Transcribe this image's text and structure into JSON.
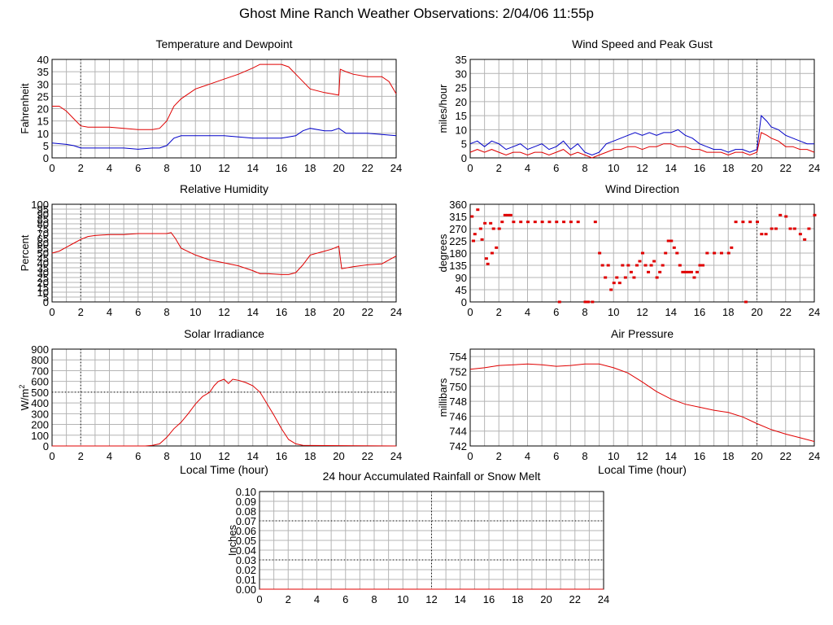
{
  "page": {
    "title": "Ghost Mine Ranch Weather Observations: 2/04/06 11:55p"
  },
  "colors": {
    "red": "#e00000",
    "blue": "#0000c8",
    "grid": "#b4b4b4",
    "refline": "#000000"
  },
  "chart_data": [
    {
      "id": "temp",
      "type": "line",
      "title": "Temperature and Dewpoint",
      "ylabel": "Fahrenheit",
      "xlabel": "",
      "xlim": [
        0,
        24
      ],
      "ylim": [
        0,
        40
      ],
      "xticks": [
        0,
        2,
        4,
        6,
        8,
        10,
        12,
        14,
        16,
        18,
        20,
        22,
        24
      ],
      "yticks": [
        "0",
        "5",
        "10",
        "15",
        "20",
        "25",
        "30",
        "35",
        "40"
      ],
      "ref_x": [
        2
      ],
      "series": [
        {
          "color": "red",
          "x": [
            0,
            0.5,
            1,
            1.5,
            2,
            2.5,
            3,
            4,
            5,
            6,
            7,
            7.5,
            8,
            8.5,
            9,
            10,
            11,
            12,
            13,
            14,
            14.5,
            15,
            16,
            16.5,
            17,
            17.5,
            18,
            19,
            19.5,
            20,
            20.1,
            20.5,
            21,
            22,
            23,
            23.5,
            24
          ],
          "y": [
            21,
            21,
            19,
            16,
            13,
            12.5,
            12.5,
            12.5,
            12,
            11.5,
            11.5,
            12,
            15,
            21,
            24,
            28,
            30,
            32,
            34,
            36.5,
            38,
            38,
            38,
            37,
            34,
            31,
            28,
            26.5,
            26,
            25.5,
            36,
            35,
            34,
            33,
            33,
            31,
            26
          ]
        },
        {
          "color": "blue",
          "x": [
            0,
            1,
            1.5,
            2,
            3,
            4,
            5,
            6,
            7,
            7.5,
            8,
            8.5,
            9,
            10,
            11,
            12,
            13,
            14,
            15,
            16,
            17,
            17.5,
            18,
            19,
            19.5,
            20,
            20.5,
            21,
            22,
            23,
            24
          ],
          "y": [
            6,
            5.5,
            5,
            4,
            4,
            4,
            4,
            3.5,
            4,
            4,
            5,
            8,
            9,
            9,
            9,
            9,
            8.5,
            8,
            8,
            8,
            9,
            11,
            12,
            11,
            11,
            12,
            10,
            10,
            10,
            9.5,
            9
          ]
        }
      ]
    },
    {
      "id": "wind",
      "type": "line",
      "title": "Wind Speed and Peak Gust",
      "ylabel": "miles/hour",
      "xlabel": "",
      "xlim": [
        0,
        24
      ],
      "ylim": [
        0,
        35
      ],
      "xticks": [
        0,
        2,
        4,
        6,
        8,
        10,
        12,
        14,
        16,
        18,
        20,
        22,
        24
      ],
      "yticks": [
        "0",
        "5",
        "10",
        "15",
        "20",
        "25",
        "30",
        "35"
      ],
      "ref_x": [
        20
      ],
      "series": [
        {
          "color": "blue",
          "x": [
            0,
            0.5,
            1,
            1.5,
            2,
            2.5,
            3,
            3.5,
            4,
            4.5,
            5,
            5.5,
            6,
            6.5,
            7,
            7.5,
            8,
            8.5,
            9,
            9.5,
            10,
            10.5,
            11,
            11.5,
            12,
            12.5,
            13,
            13.5,
            14,
            14.5,
            15,
            15.5,
            16,
            16.5,
            17,
            17.5,
            18,
            18.5,
            19,
            19.5,
            20,
            20.3,
            20.7,
            21,
            21.5,
            22,
            22.5,
            23,
            23.5,
            24
          ],
          "y": [
            5,
            6,
            4,
            6,
            5,
            3,
            4,
            5,
            3,
            4,
            5,
            3,
            4,
            6,
            3,
            5,
            2,
            1,
            2,
            5,
            6,
            7,
            8,
            9,
            8,
            9,
            8,
            9,
            9,
            10,
            8,
            7,
            5,
            4,
            3,
            3,
            2,
            3,
            3,
            2,
            3,
            15,
            13,
            11,
            10,
            8,
            7,
            6,
            5,
            5
          ]
        },
        {
          "color": "red",
          "x": [
            0,
            0.5,
            1,
            1.5,
            2,
            2.5,
            3,
            3.5,
            4,
            4.5,
            5,
            5.5,
            6,
            6.5,
            7,
            7.5,
            8,
            8.5,
            9,
            9.5,
            10,
            10.5,
            11,
            11.5,
            12,
            12.5,
            13,
            13.5,
            14,
            14.5,
            15,
            15.5,
            16,
            16.5,
            17,
            17.5,
            18,
            18.5,
            19,
            19.5,
            20,
            20.3,
            20.7,
            21,
            21.5,
            22,
            22.5,
            23,
            23.5,
            24
          ],
          "y": [
            2,
            3,
            2,
            3,
            2,
            1,
            2,
            2,
            1,
            2,
            2,
            1,
            2,
            3,
            1,
            2,
            1,
            0,
            1,
            2,
            3,
            3,
            4,
            4,
            3,
            4,
            4,
            5,
            5,
            4,
            4,
            3,
            3,
            2,
            2,
            2,
            1,
            2,
            2,
            1,
            2,
            9,
            8,
            7,
            6,
            4,
            4,
            3,
            3,
            2
          ]
        }
      ]
    },
    {
      "id": "rh",
      "type": "line",
      "title": "Relative Humidity",
      "ylabel": "Percent",
      "xlabel": "",
      "xlim": [
        0,
        24
      ],
      "ylim": [
        0,
        100
      ],
      "xticks": [
        0,
        2,
        4,
        6,
        8,
        10,
        12,
        14,
        16,
        18,
        20,
        22,
        24
      ],
      "yticks": [
        "0",
        "5",
        "10",
        "15",
        "20",
        "25",
        "30",
        "35",
        "40",
        "45",
        "50",
        "55",
        "60",
        "65",
        "70",
        "75",
        "80",
        "85",
        "90",
        "95",
        "100"
      ],
      "ref_x": [
        2
      ],
      "series": [
        {
          "color": "red",
          "x": [
            0,
            0.5,
            1,
            1.5,
            2,
            2.5,
            3,
            4,
            5,
            6,
            7,
            8,
            8.3,
            8.6,
            9,
            10,
            11,
            12,
            13,
            14,
            14.5,
            15,
            16,
            16.5,
            17,
            17.5,
            18,
            19,
            19.5,
            20,
            20.2,
            21,
            22,
            23,
            24
          ],
          "y": [
            50,
            52,
            56,
            60,
            64,
            67,
            68,
            69,
            69,
            70,
            70,
            70,
            71,
            65,
            55,
            48,
            43,
            40,
            37,
            32,
            29,
            29,
            28,
            28,
            30,
            38,
            48,
            52,
            54,
            57,
            34,
            36,
            38,
            39,
            47
          ]
        }
      ]
    },
    {
      "id": "wdir",
      "type": "scatter",
      "title": "Wind Direction",
      "ylabel": "degrees",
      "xlabel": "",
      "xlim": [
        0,
        24
      ],
      "ylim": [
        0,
        360
      ],
      "xticks": [
        0,
        2,
        4,
        6,
        8,
        10,
        12,
        14,
        16,
        18,
        20,
        22,
        24
      ],
      "yticks": [
        "0",
        "45",
        "90",
        "135",
        "180",
        "225",
        "270",
        "315",
        "360"
      ],
      "ref_x": [
        20
      ],
      "series": [
        {
          "color": "red",
          "x": [
            0.1,
            0.2,
            0.3,
            0.5,
            0.7,
            0.8,
            1.0,
            1.1,
            1.2,
            1.4,
            1.5,
            1.6,
            1.8,
            2.0,
            2.2,
            2.4,
            2.6,
            2.8,
            3.0,
            3.5,
            4.0,
            4.5,
            5.0,
            5.5,
            6.0,
            6.2,
            6.5,
            7.0,
            7.5,
            8.0,
            8.2,
            8.5,
            8.7,
            9.0,
            9.2,
            9.4,
            9.6,
            9.8,
            10.0,
            10.2,
            10.4,
            10.6,
            10.8,
            11.0,
            11.2,
            11.4,
            11.6,
            11.8,
            12.0,
            12.2,
            12.4,
            12.6,
            12.8,
            13.0,
            13.2,
            13.4,
            13.6,
            13.8,
            14.0,
            14.2,
            14.4,
            14.6,
            14.8,
            15.0,
            15.2,
            15.4,
            15.6,
            15.8,
            16.0,
            16.2,
            16.5,
            17.0,
            17.5,
            18.0,
            18.2,
            18.5,
            19.0,
            19.2,
            19.5,
            20.0,
            20.3,
            20.6,
            21.0,
            21.3,
            21.6,
            22.0,
            22.3,
            22.6,
            23.0,
            23.3,
            23.6,
            24.0
          ],
          "y": [
            315,
            225,
            250,
            340,
            270,
            230,
            290,
            160,
            140,
            290,
            180,
            270,
            200,
            270,
            295,
            320,
            320,
            320,
            295,
            295,
            295,
            295,
            295,
            295,
            295,
            0,
            295,
            295,
            295,
            0,
            0,
            0,
            295,
            180,
            135,
            90,
            135,
            45,
            70,
            90,
            70,
            135,
            90,
            135,
            110,
            90,
            135,
            150,
            180,
            135,
            110,
            135,
            150,
            90,
            110,
            135,
            180,
            225,
            225,
            200,
            180,
            135,
            110,
            110,
            110,
            110,
            90,
            110,
            135,
            135,
            180,
            180,
            180,
            180,
            200,
            295,
            295,
            0,
            295,
            295,
            250,
            250,
            270,
            270,
            320,
            315,
            270,
            270,
            250,
            230,
            270,
            320
          ]
        }
      ]
    },
    {
      "id": "solar",
      "type": "line",
      "title": "Solar Irradiance",
      "ylabel": "W/m",
      "ylabel_sup": "2",
      "xlabel": "Local Time (hour)",
      "xlim": [
        0,
        24
      ],
      "ylim": [
        0,
        900
      ],
      "xticks": [
        0,
        2,
        4,
        6,
        8,
        10,
        12,
        14,
        16,
        18,
        20,
        22,
        24
      ],
      "yticks": [
        "0",
        "100",
        "200",
        "300",
        "400",
        "500",
        "600",
        "700",
        "800",
        "900"
      ],
      "ref_x": [
        2
      ],
      "ref_y": [
        500
      ],
      "series": [
        {
          "color": "red",
          "x": [
            0,
            6.5,
            7,
            7.5,
            8,
            8.5,
            9,
            9.5,
            10,
            10.5,
            11,
            11.3,
            11.6,
            12,
            12.3,
            12.6,
            13,
            13.5,
            14,
            14.5,
            15,
            15.5,
            16,
            16.5,
            17,
            17.5,
            24
          ],
          "y": [
            0,
            0,
            5,
            20,
            80,
            160,
            220,
            300,
            390,
            460,
            500,
            560,
            600,
            620,
            580,
            620,
            610,
            590,
            560,
            500,
            390,
            280,
            160,
            60,
            20,
            5,
            0
          ]
        }
      ]
    },
    {
      "id": "pressure",
      "type": "line",
      "title": "Air Pressure",
      "ylabel": "millibars",
      "xlabel": "Local Time (hour)",
      "xlim": [
        0,
        24
      ],
      "ylim": [
        742,
        755
      ],
      "xticks": [
        0,
        2,
        4,
        6,
        8,
        10,
        12,
        14,
        16,
        18,
        20,
        22,
        24
      ],
      "yticks": [
        "742",
        "744",
        "746",
        "748",
        "750",
        "752",
        "754"
      ],
      "ref_x": [
        20
      ],
      "series": [
        {
          "color": "red",
          "x": [
            0,
            1,
            2,
            3,
            4,
            5,
            6,
            7,
            8,
            9,
            10,
            11,
            12,
            13,
            14,
            15,
            16,
            17,
            18,
            19,
            20,
            21,
            22,
            23,
            24
          ],
          "y": [
            752.3,
            752.5,
            752.8,
            752.9,
            753.0,
            752.9,
            752.7,
            752.8,
            753.0,
            753.0,
            752.5,
            751.8,
            750.6,
            749.3,
            748.3,
            747.6,
            747.2,
            746.8,
            746.5,
            745.9,
            745.0,
            744.2,
            743.6,
            743.1,
            742.6
          ]
        }
      ]
    },
    {
      "id": "rain",
      "type": "line",
      "title": "24 hour Accumulated Rainfall or Snow Melt",
      "ylabel": "Inches",
      "xlabel": "",
      "xlim": [
        0,
        24
      ],
      "ylim": [
        0,
        0.1
      ],
      "xticks": [
        0,
        2,
        4,
        6,
        8,
        10,
        12,
        14,
        16,
        18,
        20,
        22,
        24
      ],
      "yticks": [
        "0.00",
        "0.01",
        "0.02",
        "0.03",
        "0.04",
        "0.05",
        "0.06",
        "0.07",
        "0.08",
        "0.09",
        "0.10"
      ],
      "ref_x": [
        12
      ],
      "ref_y": [
        0.03,
        0.07
      ],
      "series": [
        {
          "color": "red",
          "x": [
            0,
            24
          ],
          "y": [
            0,
            0
          ]
        }
      ]
    }
  ]
}
